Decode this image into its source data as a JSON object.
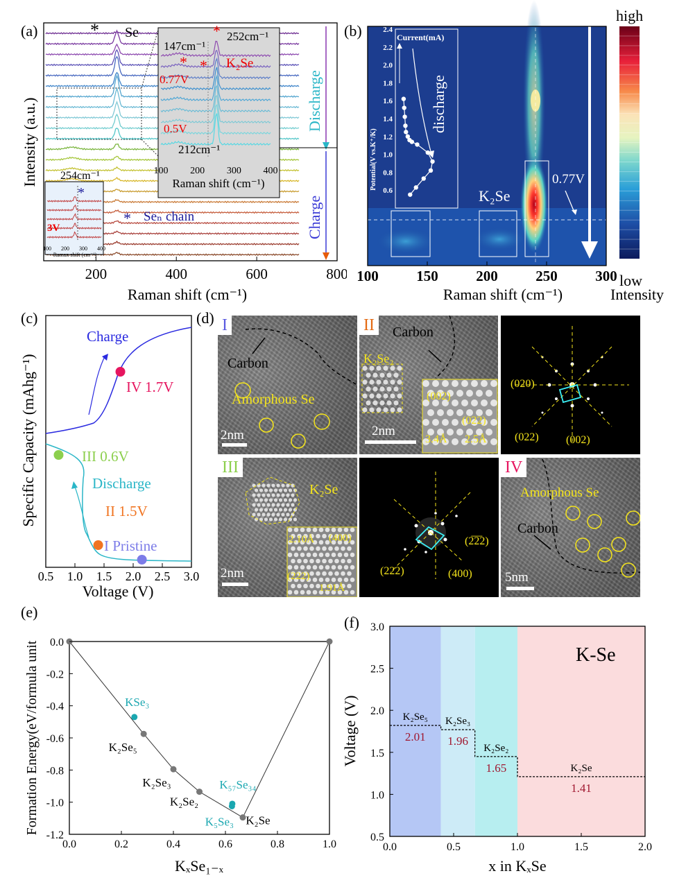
{
  "panel_labels": {
    "a": "(a)",
    "b": "(b)",
    "c": "(c)",
    "d": "(d)",
    "e": "(e)",
    "f": "(f)"
  },
  "chart_data": [
    {
      "id": "a",
      "type": "line",
      "title": "",
      "xlabel": "Raman shift (cm⁻¹)",
      "ylabel": "Intensity (a.u.)",
      "xlim": [
        70,
        800
      ],
      "xticks": [
        200,
        400,
        600,
        800
      ],
      "annotations": [
        "Se",
        "Seₙ chain",
        "254cm⁻¹",
        "3V",
        "Discharge",
        "Charge"
      ],
      "n_spectra": 22,
      "peak_position": 252,
      "inset": {
        "xlabel": "Raman shift (cm⁻¹)",
        "xticks": [
          100,
          200,
          300,
          400
        ],
        "labels": [
          "147cm⁻¹",
          "252cm⁻¹",
          "K₂Se",
          "0.77V",
          "0.5V",
          "212cm⁻¹"
        ]
      }
    },
    {
      "id": "b",
      "type": "heatmap",
      "xlabel": "Raman shift (cm⁻¹)",
      "xlim": [
        100,
        300
      ],
      "xticks": [
        100,
        150,
        200,
        250,
        300
      ],
      "colorbar": {
        "high": "high",
        "low": "low",
        "label": "Intensity"
      },
      "annotations": [
        "K₂Se",
        "0.77V"
      ],
      "inset": {
        "title": "Current(mA)",
        "ylabel": "Potential(V vs.K⁺/K)",
        "ylim": [
          0.4,
          2.4
        ],
        "yticks": [
          "0.6",
          "0.8",
          "1.0",
          "1.2",
          "1.4",
          "1.6",
          "1.8",
          "2.0",
          "2.2",
          "2.4"
        ],
        "label": "discharge",
        "points": [
          [
            0.14,
            1.62
          ],
          [
            0.15,
            1.52
          ],
          [
            0.16,
            1.42
          ],
          [
            0.17,
            1.32
          ],
          [
            0.18,
            1.25
          ],
          [
            0.21,
            1.2
          ],
          [
            0.24,
            1.16
          ],
          [
            0.28,
            1.14
          ],
          [
            0.37,
            1.11
          ],
          [
            0.55,
            1.02
          ],
          [
            0.63,
            0.92
          ],
          [
            0.6,
            0.82
          ],
          [
            0.48,
            0.73
          ],
          [
            0.35,
            0.63
          ],
          [
            0.25,
            0.55
          ]
        ]
      }
    },
    {
      "id": "c",
      "type": "line",
      "xlabel": "Voltage (V)",
      "ylabel": "Specific Capacity (mAhg⁻¹)",
      "xlim": [
        0.5,
        3.0
      ],
      "xticks": [
        "0.5",
        "1.0",
        "1.5",
        "2.0",
        "2.5",
        "3.0"
      ],
      "annotations": [
        "Charge",
        "Discharge"
      ],
      "points": [
        {
          "label": "IV 1.7V",
          "x": 1.78,
          "color": "#e6155f"
        },
        {
          "label": "III 0.6V",
          "x": 0.72,
          "color": "#8ccf4d"
        },
        {
          "label": "II 1.5V",
          "x": 1.4,
          "color": "#f07421"
        },
        {
          "label": "I Pristine",
          "x": 2.15,
          "color": "#7c7ce8"
        }
      ]
    },
    {
      "id": "e",
      "type": "line",
      "xlabel": "KₓSe₁₋ₓ",
      "ylabel": "Formation Energy(eV/formula unit",
      "xlim": [
        0.0,
        1.0
      ],
      "ylim": [
        -1.2,
        0.0
      ],
      "xticks": [
        "0.0",
        "0.2",
        "0.4",
        "0.6",
        "0.8",
        "1.0"
      ],
      "yticks": [
        "0.0",
        "-0.2",
        "-0.4",
        "-0.6",
        "-0.8",
        "-1.0",
        "-1.2"
      ],
      "hull": [
        [
          0.0,
          0.0
        ],
        [
          0.2857,
          -0.575
        ],
        [
          0.4,
          -0.795
        ],
        [
          0.5,
          -0.935
        ],
        [
          0.6667,
          -1.095
        ],
        [
          1.0,
          0.0
        ]
      ],
      "hull_labels": [
        "K₂Se₅",
        "K₂Se₃",
        "K₂Se₂",
        "K₂Se"
      ],
      "offhull": [
        {
          "label": "KSe₃",
          "x": 0.25,
          "y": -0.47
        },
        {
          "label": "K₅₇Se₃₄",
          "x": 0.6264,
          "y": -1.01
        },
        {
          "label": "K₅Se₃",
          "x": 0.625,
          "y": -1.025
        }
      ]
    },
    {
      "id": "f",
      "type": "step",
      "title": "K-Se",
      "xlabel": "x in KₓSe",
      "ylabel": "Voltage (V)",
      "xlim": [
        0.0,
        2.0
      ],
      "ylim": [
        0.5,
        3.0
      ],
      "xticks": [
        "0.0",
        "0.5",
        "1.0",
        "1.5",
        "2.0"
      ],
      "yticks": [
        "0.5",
        "1.0",
        "1.5",
        "2.0",
        "2.5",
        "3.0"
      ],
      "steps": [
        {
          "phase": "K₂Se₅",
          "x0": 0.0,
          "x1": 0.4,
          "v": 1.82,
          "value": "2.01",
          "color": "#b5c7f5"
        },
        {
          "phase": "K₂Se₃",
          "x0": 0.4,
          "x1": 0.667,
          "v": 1.77,
          "value": "1.96",
          "color": "#cdebf7"
        },
        {
          "phase": "K₂Se₂",
          "x0": 0.667,
          "x1": 1.0,
          "v": 1.45,
          "value": "1.65",
          "color": "#b7eef0"
        },
        {
          "phase": "K₂Se",
          "x0": 1.0,
          "x1": 2.0,
          "v": 1.21,
          "value": "1.41",
          "color": "#fbdcdd"
        }
      ]
    }
  ],
  "tem": {
    "I": {
      "roman": "I",
      "labels": [
        "Carbon",
        "Amorphous Se"
      ],
      "scale": "2nm"
    },
    "II": {
      "roman": "II",
      "labels": [
        "Carbon",
        "K₂Se₂",
        "(002)",
        "(022)",
        "3.4Å",
        "2.5Å"
      ],
      "scale": "2nm"
    },
    "II_fft": {
      "labels": [
        "(020)",
        "(022)",
        "(002)"
      ]
    },
    "III": {
      "roman": "III",
      "labels": [
        "K₂Se",
        "2.10Å",
        "(400)",
        "(222)",
        "1.91Å"
      ],
      "scale": "2nm"
    },
    "III_fft": {
      "labels": [
        "(2̅2̅2)",
        "(222)",
        "(400)"
      ]
    },
    "IV": {
      "roman": "IV",
      "labels": [
        "Amorphous Se",
        "Carbon"
      ],
      "scale": "5nm"
    }
  }
}
